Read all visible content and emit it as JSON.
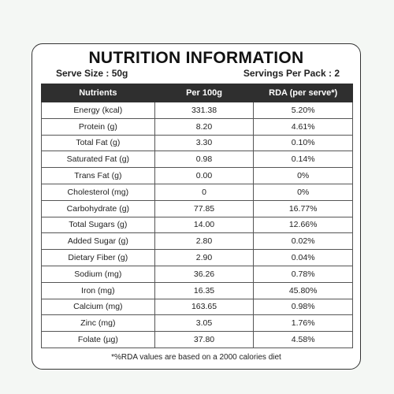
{
  "header": {
    "title": "NUTRITION INFORMATION",
    "serve_size": "Serve Size : 50g",
    "servings": "Servings Per Pack : 2"
  },
  "table": {
    "columns": [
      "Nutrients",
      "Per 100g",
      "RDA (per serve*)"
    ],
    "rows": [
      [
        "Energy (kcal)",
        "331.38",
        "5.20%"
      ],
      [
        "Protein (g)",
        "8.20",
        "4.61%"
      ],
      [
        "Total Fat (g)",
        "3.30",
        "0.10%"
      ],
      [
        "Saturated Fat (g)",
        "0.98",
        "0.14%"
      ],
      [
        "Trans Fat (g)",
        "0.00",
        "0%"
      ],
      [
        "Cholesterol (mg)",
        "0",
        "0%"
      ],
      [
        "Carbohydrate (g)",
        "77.85",
        "16.77%"
      ],
      [
        "Total Sugars (g)",
        "14.00",
        "12.66%"
      ],
      [
        "Added Sugar (g)",
        "2.80",
        "0.02%"
      ],
      [
        "Dietary Fiber (g)",
        "2.90",
        "0.04%"
      ],
      [
        "Sodium (mg)",
        "36.26",
        "0.78%"
      ],
      [
        "Iron (mg)",
        "16.35",
        "45.80%"
      ],
      [
        "Calcium (mg)",
        "163.65",
        "0.98%"
      ],
      [
        "Zinc (mg)",
        "3.05",
        "1.76%"
      ],
      [
        "Folate (µg)",
        "37.80",
        "4.58%"
      ]
    ]
  },
  "footnote": "*%RDA values are based on a 2000 calories diet"
}
